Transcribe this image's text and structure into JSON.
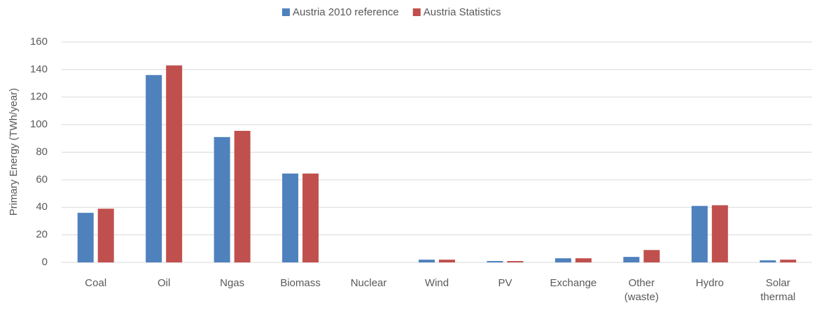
{
  "chart_data": {
    "type": "bar",
    "categories": [
      "Coal",
      "Oil",
      "Ngas",
      "Biomass",
      "Nuclear",
      "Wind",
      "PV",
      "Exchange",
      "Other (waste)",
      "Hydro",
      "Solar thermal"
    ],
    "series": [
      {
        "name": "Austria 2010 reference",
        "color": "#4f81bd",
        "values": [
          36,
          136,
          91,
          64.5,
          0,
          2,
          1,
          3,
          4,
          41,
          1.5
        ]
      },
      {
        "name": "Austria Statistics",
        "color": "#c0504d",
        "values": [
          39,
          143,
          95.5,
          64.5,
          0,
          2,
          1,
          3,
          9,
          41.5,
          2
        ]
      }
    ],
    "ylabel": "Primary Energy (TWh/year)",
    "ylim": [
      0,
      160
    ],
    "yticks": [
      0,
      20,
      40,
      60,
      80,
      100,
      120,
      140,
      160
    ],
    "grid": true,
    "legend": "top"
  }
}
